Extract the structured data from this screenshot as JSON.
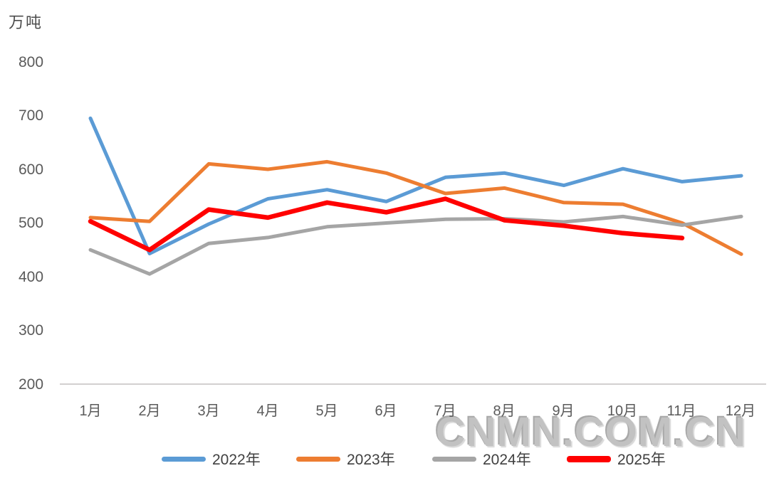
{
  "unit_label": "万吨",
  "watermark": "CNMN.COM.CN",
  "colors": {
    "series_blue": "#5B9BD5",
    "series_orange": "#ED7D31",
    "series_gray": "#A5A5A5",
    "series_red": "#FF0000",
    "axis_text": "#5a5a5a",
    "axis_line": "#d2d0d0",
    "watermark_gray": "#c2c2c2"
  },
  "chart_data": {
    "type": "line",
    "title": "",
    "xlabel": "",
    "ylabel": "万吨",
    "ylim": [
      200,
      800
    ],
    "grid": false,
    "legend_position": "bottom",
    "watermark": "CNMN.COM.CN",
    "y_ticks": [
      800,
      700,
      600,
      500,
      400,
      300,
      200
    ],
    "categories": [
      "1月",
      "2月",
      "3月",
      "4月",
      "5月",
      "6月",
      "7月",
      "8月",
      "9月",
      "10月",
      "11月",
      "12月"
    ],
    "series": [
      {
        "name": "2022年",
        "color": "#5B9BD5",
        "values": [
          695,
          443,
          498,
          545,
          562,
          540,
          585,
          593,
          570,
          601,
          577,
          588
        ]
      },
      {
        "name": "2023年",
        "color": "#ED7D31",
        "values": [
          510,
          503,
          610,
          600,
          614,
          593,
          555,
          565,
          538,
          535,
          500,
          442
        ]
      },
      {
        "name": "2024年",
        "color": "#A5A5A5",
        "values": [
          450,
          405,
          462,
          473,
          493,
          500,
          507,
          508,
          502,
          512,
          496,
          512
        ]
      },
      {
        "name": "2025年",
        "color": "#FF0000",
        "values": [
          503,
          450,
          525,
          510,
          538,
          520,
          545,
          505,
          495,
          481,
          472
        ]
      }
    ]
  }
}
